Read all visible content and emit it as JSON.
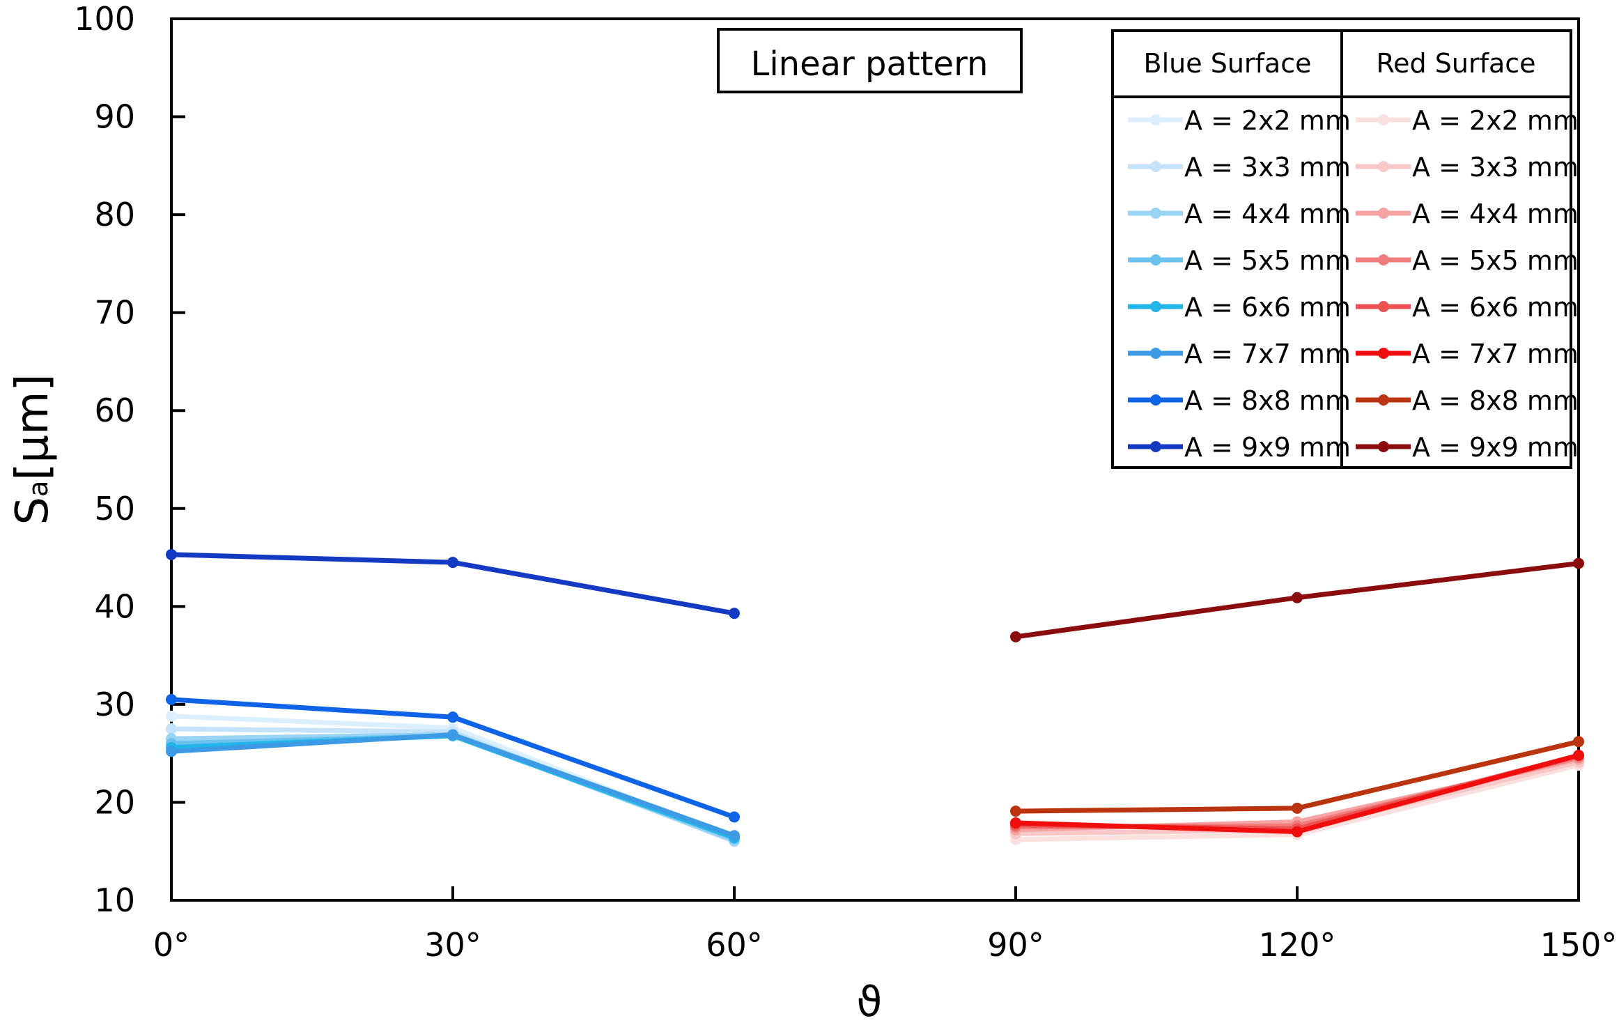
{
  "chart_data": {
    "type": "line",
    "title": "Linear pattern",
    "xlabel": "ϑ",
    "ylabel_main": "S",
    "ylabel_sub": "a",
    "ylabel_unit": "[µm]",
    "xlim": [
      0,
      150
    ],
    "ylim": [
      10,
      100
    ],
    "x_ticks": [
      0,
      30,
      60,
      90,
      120,
      150
    ],
    "x_tick_labels": [
      "0°",
      "30°",
      "60°",
      "90°",
      "120°",
      "150°"
    ],
    "y_ticks": [
      10,
      20,
      30,
      40,
      50,
      60,
      70,
      80,
      90,
      100
    ],
    "y_tick_labels": [
      "10",
      "20",
      "30",
      "40",
      "50",
      "60",
      "70",
      "80",
      "90",
      "100"
    ],
    "grid": false,
    "legend": {
      "placement": "top-right",
      "headers": [
        "Blue Surface",
        "Red Surface"
      ]
    },
    "series": [
      {
        "name": "A = 2x2 mm",
        "group": "Blue Surface",
        "color": "#dcefff",
        "x": [
          0,
          30,
          60
        ],
        "y": [
          28.8,
          27.6,
          16.3
        ]
      },
      {
        "name": "A = 3x3 mm",
        "group": "Blue Surface",
        "color": "#c4e3fb",
        "x": [
          0,
          30,
          60
        ],
        "y": [
          27.5,
          27.2,
          16.0
        ]
      },
      {
        "name": "A = 4x4 mm",
        "group": "Blue Surface",
        "color": "#99d4f5",
        "x": [
          0,
          30,
          60
        ],
        "y": [
          26.5,
          26.9,
          16.1
        ]
      },
      {
        "name": "A = 5x5 mm",
        "group": "Blue Surface",
        "color": "#6cc2ef",
        "x": [
          0,
          30,
          60
        ],
        "y": [
          26.0,
          26.8,
          16.3
        ]
      },
      {
        "name": "A = 6x6 mm",
        "group": "Blue Surface",
        "color": "#22b5ea",
        "x": [
          0,
          30,
          60
        ],
        "y": [
          25.6,
          26.8,
          16.4
        ]
      },
      {
        "name": "A = 7x7 mm",
        "group": "Blue Surface",
        "color": "#3d9be6",
        "x": [
          0,
          30,
          60
        ],
        "y": [
          25.2,
          26.9,
          16.6
        ]
      },
      {
        "name": "A = 8x8 mm",
        "group": "Blue Surface",
        "color": "#0e63e6",
        "x": [
          0,
          30,
          60
        ],
        "y": [
          30.5,
          28.7,
          18.5
        ]
      },
      {
        "name": "A = 9x9 mm",
        "group": "Blue Surface",
        "color": "#1439c2",
        "x": [
          0,
          30,
          60
        ],
        "y": [
          45.3,
          44.5,
          39.3
        ]
      },
      {
        "name": "A = 2x2 mm",
        "group": "Red Surface",
        "color": "#fbe0e0",
        "x": [
          90,
          120,
          150
        ],
        "y": [
          16.2,
          16.7,
          23.8
        ]
      },
      {
        "name": "A = 3x3 mm",
        "group": "Red Surface",
        "color": "#f8c8c8",
        "x": [
          90,
          120,
          150
        ],
        "y": [
          16.8,
          17.2,
          24.1
        ]
      },
      {
        "name": "A = 4x4 mm",
        "group": "Red Surface",
        "color": "#f5a3a3",
        "x": [
          90,
          120,
          150
        ],
        "y": [
          17.2,
          18.0,
          24.4
        ]
      },
      {
        "name": "A = 5x5 mm",
        "group": "Red Surface",
        "color": "#f07c7c",
        "x": [
          90,
          120,
          150
        ],
        "y": [
          17.5,
          17.6,
          24.6
        ]
      },
      {
        "name": "A = 6x6 mm",
        "group": "Red Surface",
        "color": "#ec5252",
        "x": [
          90,
          120,
          150
        ],
        "y": [
          17.7,
          17.3,
          24.8
        ]
      },
      {
        "name": "A = 7x7 mm",
        "group": "Red Surface",
        "color": "#ef0d0d",
        "x": [
          90,
          120,
          150
        ],
        "y": [
          17.9,
          17.0,
          24.8
        ]
      },
      {
        "name": "A = 8x8 mm",
        "group": "Red Surface",
        "color": "#bb3410",
        "x": [
          90,
          120,
          150
        ],
        "y": [
          19.1,
          19.4,
          26.2
        ]
      },
      {
        "name": "A = 9x9 mm",
        "group": "Red Surface",
        "color": "#8a0c0c",
        "x": [
          90,
          120,
          150
        ],
        "y": [
          36.9,
          40.9,
          44.4
        ]
      }
    ]
  }
}
